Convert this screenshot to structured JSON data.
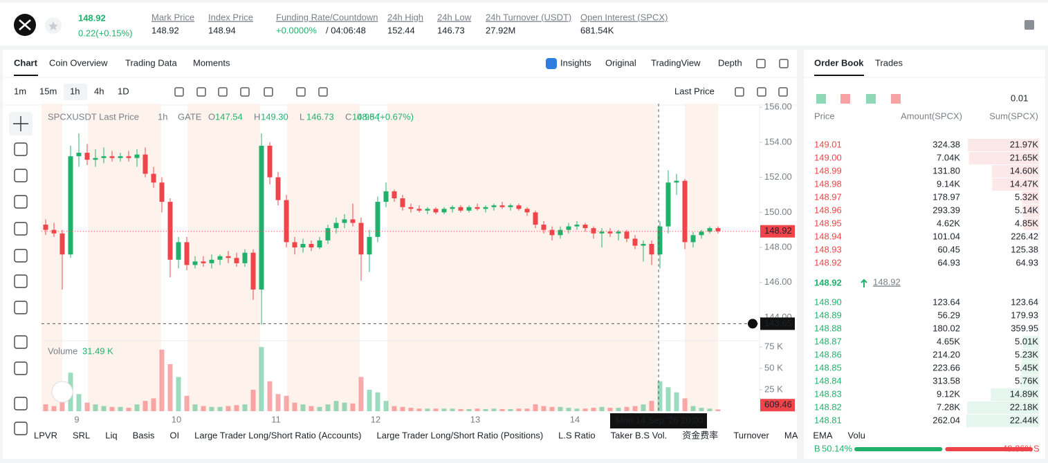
{
  "header": {
    "price": "148.92",
    "change": "0.22(+0.15%)",
    "stats": [
      {
        "label": "Mark Price",
        "value": "148.92"
      },
      {
        "label": "Index Price",
        "value": "148.94"
      },
      {
        "label": "Funding Rate/Countdown",
        "value": "+0.0000%",
        "value2": "/ 04:06:48"
      },
      {
        "label": "24h High",
        "value": "152.44"
      },
      {
        "label": "24h Low",
        "value": "146.73"
      },
      {
        "label": "24h Turnover (USDT)",
        "value": "27.92M"
      },
      {
        "label": "Open Interest (SPCX)",
        "value": "681.54K"
      }
    ]
  },
  "tabs": [
    "Chart",
    "Coin Overview",
    "Trading Data",
    "Moments"
  ],
  "views": [
    "Insights",
    "Original",
    "TradingView",
    "Depth"
  ],
  "intervals": [
    "1m",
    "15m",
    "1h",
    "4h",
    "1D"
  ],
  "price_type": "Last Price",
  "chart_data": {
    "type": "candlestick",
    "symbol": "SPCXUSDT Last Price",
    "interval": "1h",
    "exchange": "GATE",
    "ohlc_legend": [
      {
        "label": "O",
        "value": "147.54"
      },
      {
        "label": "H",
        "value": "149.30"
      },
      {
        "label": "L",
        "value": "146.73"
      },
      {
        "label": "C",
        "value": "148.54"
      }
    ],
    "change": "0.98 (+0.67%)",
    "up_color": "#20b26c",
    "down_color": "#ef454a",
    "x_labels": [
      "9",
      "10",
      "11",
      "12",
      "13",
      "14"
    ],
    "open": [
      149.3,
      149.0,
      148.8,
      147.6,
      153.2,
      153.4,
      153.0,
      153.1,
      153.2,
      153.1,
      153.2,
      153.1,
      153.3,
      152.2,
      151.7,
      150.6,
      147.3,
      148.3,
      147.0,
      147.2,
      147.1,
      147.3,
      147.5,
      147.4,
      147.1,
      147.7,
      145.6,
      153.8,
      152.0,
      150.7,
      148.3,
      148.0,
      148.2,
      148.0,
      148.4,
      149.1,
      149.4,
      149.6,
      149.4,
      147.6,
      148.6,
      150.6,
      151.2,
      150.8,
      150.3,
      150.2,
      150.1,
      150.2,
      150.0,
      150.2,
      150.3,
      150.1,
      150.3,
      150.2,
      150.3,
      150.4,
      150.3,
      150.4,
      150.2,
      150.0,
      149.3,
      149.0,
      148.7,
      149.0,
      149.2,
      149.3,
      149.1,
      148.8,
      148.9,
      148.8,
      148.9,
      148.5,
      148.1,
      148.2,
      147.6,
      149.2,
      151.7,
      151.8,
      148.3,
      148.7,
      148.9,
      149.1
    ],
    "high": [
      149.6,
      149.4,
      149.0,
      153.8,
      154.5,
      153.9,
      153.6,
      153.7,
      153.5,
      153.4,
      153.5,
      153.6,
      153.7,
      152.6,
      152.0,
      150.8,
      148.6,
      148.6,
      147.5,
      147.5,
      147.6,
      147.6,
      147.8,
      147.7,
      147.9,
      147.9,
      154.5,
      154.0,
      152.3,
      151.0,
      148.6,
      148.5,
      148.4,
      148.6,
      149.3,
      149.7,
      149.9,
      150.5,
      149.7,
      149.0,
      150.9,
      151.7,
      151.3,
      151.0,
      150.5,
      150.4,
      150.3,
      150.3,
      150.3,
      150.4,
      150.4,
      150.4,
      150.5,
      150.4,
      150.5,
      150.6,
      150.5,
      150.5,
      150.3,
      150.1,
      149.5,
      149.2,
      149.2,
      149.4,
      149.5,
      149.4,
      149.2,
      149.1,
      149.1,
      149.0,
      149.0,
      148.7,
      148.4,
      148.4,
      149.5,
      152.4,
      152.2,
      151.9,
      148.9,
      149.0,
      149.2,
      149.2
    ],
    "low": [
      148.7,
      148.6,
      145.6,
      147.4,
      152.6,
      152.7,
      152.6,
      152.8,
      152.9,
      152.9,
      152.9,
      152.6,
      152.0,
      151.4,
      150.0,
      146.3,
      146.8,
      146.7,
      146.8,
      146.9,
      146.8,
      147.0,
      147.1,
      146.9,
      146.9,
      145.0,
      143.6,
      151.6,
      150.4,
      148.0,
      147.6,
      147.7,
      147.8,
      147.9,
      148.2,
      148.8,
      149.1,
      149.2,
      146.1,
      146.6,
      148.3,
      150.3,
      150.6,
      150.1,
      150.0,
      150.0,
      149.9,
      149.9,
      149.9,
      150.0,
      150.0,
      150.0,
      150.1,
      150.0,
      150.1,
      150.2,
      150.1,
      150.1,
      149.8,
      149.1,
      148.8,
      148.4,
      148.5,
      148.8,
      149.0,
      148.9,
      148.5,
      148.0,
      148.6,
      148.4,
      148.3,
      147.9,
      147.2,
      147.0,
      146.8,
      148.8,
      151.0,
      147.9,
      148.0,
      148.5,
      148.8,
      148.8
    ],
    "close": [
      149.0,
      148.8,
      147.6,
      153.2,
      153.4,
      153.0,
      153.1,
      153.2,
      153.1,
      153.2,
      153.1,
      153.3,
      152.2,
      151.7,
      150.6,
      147.3,
      148.3,
      147.0,
      147.2,
      147.1,
      147.3,
      147.5,
      147.4,
      147.1,
      147.7,
      145.6,
      153.8,
      152.0,
      150.7,
      148.3,
      148.0,
      148.2,
      148.0,
      148.4,
      149.1,
      149.4,
      149.6,
      149.4,
      147.6,
      148.6,
      150.6,
      151.2,
      150.8,
      150.3,
      150.2,
      150.1,
      150.2,
      150.0,
      150.2,
      150.3,
      150.1,
      150.3,
      150.2,
      150.3,
      150.4,
      150.3,
      150.4,
      150.2,
      150.0,
      149.3,
      149.0,
      148.7,
      149.0,
      149.2,
      149.3,
      149.1,
      148.8,
      148.9,
      148.8,
      148.9,
      148.5,
      148.1,
      148.2,
      147.6,
      149.2,
      151.7,
      151.8,
      148.3,
      148.7,
      148.9,
      149.1,
      148.92
    ],
    "ylim": [
      142.8,
      156.2
    ],
    "yticks": [
      {
        "value": 144,
        "label": "144.00"
      },
      {
        "value": 146,
        "label": "146.00"
      },
      {
        "value": 148,
        "label": "148.00"
      },
      {
        "value": 150,
        "label": "150.00"
      },
      {
        "value": 152,
        "label": "152.00"
      },
      {
        "value": 154,
        "label": "154.00"
      },
      {
        "value": 156,
        "label": "156.00"
      }
    ],
    "last_price": {
      "value": 148.92,
      "label": "148.92"
    },
    "crosshair": {
      "value": 143.65,
      "label": "143.65"
    },
    "crosshair_time": "Mon 14 Sep '26  20:00",
    "volume": {
      "title": "Volume",
      "current": "31.49 K",
      "values": [
        8000,
        6000,
        30000,
        45000,
        20000,
        10000,
        8000,
        6000,
        5000,
        5000,
        4000,
        8000,
        12000,
        15000,
        72000,
        55000,
        40000,
        18000,
        8000,
        6000,
        5000,
        5000,
        6000,
        7000,
        8000,
        25000,
        75000,
        35000,
        20000,
        18000,
        10000,
        8000,
        6000,
        5000,
        8000,
        12000,
        10000,
        9000,
        40000,
        25000,
        22000,
        12000,
        6000,
        5000,
        4000,
        3000,
        3000,
        3000,
        3000,
        3000,
        2500,
        2500,
        3000,
        2500,
        3000,
        2500,
        2500,
        3000,
        3000,
        8000,
        6000,
        5000,
        5000,
        4000,
        3000,
        3000,
        4000,
        5000,
        4000,
        4000,
        5000,
        6000,
        8000,
        12000,
        35000,
        28000,
        22000,
        15000,
        6000,
        4000,
        3000,
        2000
      ],
      "ylim": [
        0,
        80000
      ],
      "yticks": [
        {
          "value": 25000,
          "label": "25 K"
        },
        {
          "value": 50000,
          "label": "50 K"
        },
        {
          "value": 75000,
          "label": "75 K"
        }
      ],
      "last": {
        "value": 609.46,
        "label": "609.46"
      }
    }
  },
  "order_book": {
    "tabs": [
      "Order Book",
      "Trades"
    ],
    "precision": "0.01",
    "columns": [
      "Price",
      "Amount(SPCX)",
      "Sum(SPCX)"
    ],
    "asks": [
      [
        "149.01",
        "324.38",
        "21.97K"
      ],
      [
        "149.00",
        "7.04K",
        "21.65K"
      ],
      [
        "148.99",
        "131.80",
        "14.60K"
      ],
      [
        "148.98",
        "9.14K",
        "14.47K"
      ],
      [
        "148.97",
        "178.97",
        "5.32K"
      ],
      [
        "148.96",
        "293.39",
        "5.14K"
      ],
      [
        "148.95",
        "4.62K",
        "4.85K"
      ],
      [
        "148.94",
        "101.04",
        "226.42"
      ],
      [
        "148.93",
        "60.45",
        "125.38"
      ],
      [
        "148.92",
        "64.93",
        "64.93"
      ]
    ],
    "last": "148.92",
    "mark": "148.92",
    "bids": [
      [
        "148.90",
        "123.64",
        "123.64"
      ],
      [
        "148.89",
        "56.29",
        "179.93"
      ],
      [
        "148.88",
        "180.02",
        "359.95"
      ],
      [
        "148.87",
        "4.65K",
        "5.01K"
      ],
      [
        "148.86",
        "214.20",
        "5.23K"
      ],
      [
        "148.85",
        "223.66",
        "5.45K"
      ],
      [
        "148.84",
        "313.58",
        "5.76K"
      ],
      [
        "148.83",
        "9.12K",
        "14.89K"
      ],
      [
        "148.82",
        "7.28K",
        "22.18K"
      ],
      [
        "148.81",
        "262.04",
        "22.44K"
      ]
    ],
    "buy_label": "B",
    "sell_label": "S",
    "buy": {
      "value": 50.14,
      "label": "50.14%"
    },
    "sell": {
      "value": 49.86,
      "label": "49.86%"
    }
  },
  "indicators": [
    "LPVR",
    "SRL",
    "Liq",
    "Basis",
    "OI",
    "Large Trader Long/Short Ratio (Accounts)",
    "Large Trader Long/Short Ratio (Positions)",
    "L.S Ratio",
    "Taker B.S Vol.",
    "资金费率",
    "Turnover",
    "MA",
    "EMA",
    "Volu"
  ]
}
